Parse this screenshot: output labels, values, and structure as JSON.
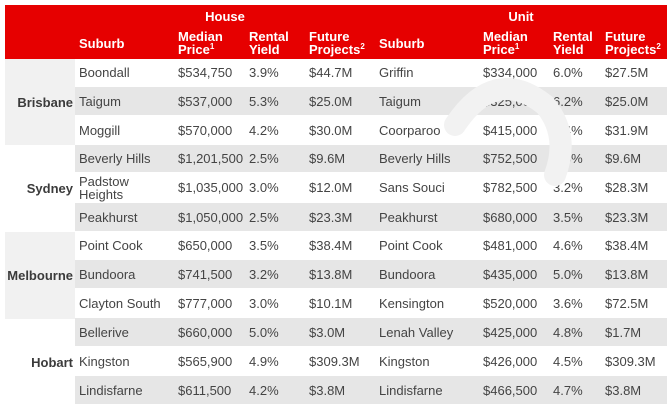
{
  "header": {
    "house_label": "House",
    "unit_label": "Unit",
    "columns": {
      "suburb": "Suburb",
      "median_price": "Median Price",
      "rental_yield": "Rental Yield",
      "future_projects": "Future Projects",
      "median_sup": "1",
      "projects_sup": "2"
    }
  },
  "cities": [
    {
      "name": "Brisbane"
    },
    {
      "name": "Sydney"
    },
    {
      "name": "Melbourne"
    },
    {
      "name": "Hobart"
    }
  ],
  "rows": [
    {
      "h_suburb": "Boondall",
      "h_price": "$534,750",
      "h_yield": "3.9%",
      "h_projects": "$44.7M",
      "u_suburb": "Griffin",
      "u_price": "$334,000",
      "u_yield": "6.0%",
      "u_projects": "$27.5M"
    },
    {
      "h_suburb": "Taigum",
      "h_price": "$537,000",
      "h_yield": "5.3%",
      "h_projects": "$25.0M",
      "u_suburb": "Taigum",
      "u_price": "$325,000",
      "u_yield": "6.2%",
      "u_projects": "$25.0M"
    },
    {
      "h_suburb": "Moggill",
      "h_price": "$570,000",
      "h_yield": "4.2%",
      "h_projects": "$30.0M",
      "u_suburb": "Coorparoo",
      "u_price": "$415,000",
      "u_yield": "5.4%",
      "u_projects": "$31.9M"
    },
    {
      "h_suburb": "Beverly Hills",
      "h_price": "$1,201,500",
      "h_yield": "2.5%",
      "h_projects": "$9.6M",
      "u_suburb": "Beverly Hills",
      "u_price": "$752,500",
      "u_yield": "3.5%",
      "u_projects": "$9.6M"
    },
    {
      "h_suburb": "Padstow Heights",
      "h_price": "$1,035,000",
      "h_yield": "3.0%",
      "h_projects": "$12.0M",
      "u_suburb": "Sans Souci",
      "u_price": "$782,500",
      "u_yield": "3.2%",
      "u_projects": "$28.3M"
    },
    {
      "h_suburb": "Peakhurst",
      "h_price": "$1,050,000",
      "h_yield": "2.5%",
      "h_projects": "$23.3M",
      "u_suburb": "Peakhurst",
      "u_price": "$680,000",
      "u_yield": "3.5%",
      "u_projects": "$23.3M"
    },
    {
      "h_suburb": "Point Cook",
      "h_price": "$650,000",
      "h_yield": "3.5%",
      "h_projects": "$38.4M",
      "u_suburb": "Point Cook",
      "u_price": "$481,000",
      "u_yield": "4.6%",
      "u_projects": "$38.4M"
    },
    {
      "h_suburb": "Bundoora",
      "h_price": "$741,500",
      "h_yield": "3.2%",
      "h_projects": "$13.8M",
      "u_suburb": "Bundoora",
      "u_price": "$435,000",
      "u_yield": "5.0%",
      "u_projects": "$13.8M"
    },
    {
      "h_suburb": "Clayton South",
      "h_price": "$777,000",
      "h_yield": "3.0%",
      "h_projects": "$10.1M",
      "u_suburb": "Kensington",
      "u_price": "$520,000",
      "u_yield": "3.6%",
      "u_projects": "$72.5M"
    },
    {
      "h_suburb": "Bellerive",
      "h_price": "$660,000",
      "h_yield": "5.0%",
      "h_projects": "$3.0M",
      "u_suburb": "Lenah Valley",
      "u_price": "$425,000",
      "u_yield": "4.8%",
      "u_projects": "$1.7M"
    },
    {
      "h_suburb": "Kingston",
      "h_price": "$565,900",
      "h_yield": "4.9%",
      "h_projects": "$309.3M",
      "u_suburb": "Kingston",
      "u_price": "$426,000",
      "u_yield": "4.5%",
      "u_projects": "$309.3M"
    },
    {
      "h_suburb": "Lindisfarne",
      "h_price": "$611,500",
      "h_yield": "4.2%",
      "h_projects": "$3.8M",
      "u_suburb": "Lindisfarne",
      "u_price": "$466,500",
      "u_yield": "4.7%",
      "u_projects": "$3.8M"
    }
  ],
  "colors": {
    "header_red": "#e60000",
    "row_grey": "#e6e6e6",
    "city_grey": "#f1f1f1",
    "text": "#444444"
  }
}
